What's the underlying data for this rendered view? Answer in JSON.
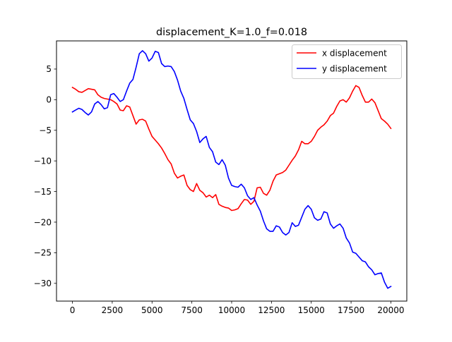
{
  "chart_data": {
    "type": "line",
    "title": "displacement_K=1.0_f=0.018",
    "xlabel": "",
    "ylabel": "",
    "xlim": [
      -1000,
      21000
    ],
    "ylim": [
      -32.9,
      9.6
    ],
    "x_ticks": [
      0,
      2500,
      5000,
      7500,
      10000,
      12500,
      15000,
      17500,
      20000
    ],
    "x_tick_labels": [
      "0",
      "2500",
      "5000",
      "7500",
      "10000",
      "12500",
      "15000",
      "17500",
      "20000"
    ],
    "y_ticks": [
      5,
      0,
      -5,
      -10,
      -15,
      -20,
      -25,
      -30
    ],
    "y_tick_labels": [
      "5",
      "0",
      "−5",
      "−10",
      "−15",
      "−20",
      "−25",
      "−30"
    ],
    "grid": false,
    "legend_position": "upper-right",
    "series": [
      {
        "name": "x displacement",
        "color": "#ff0000",
        "points": [
          [
            0,
            2.0
          ],
          [
            200,
            1.7
          ],
          [
            400,
            1.3
          ],
          [
            600,
            1.2
          ],
          [
            800,
            1.5
          ],
          [
            1000,
            1.8
          ],
          [
            1200,
            1.7
          ],
          [
            1400,
            1.6
          ],
          [
            1600,
            0.8
          ],
          [
            1800,
            0.4
          ],
          [
            2000,
            0.2
          ],
          [
            2200,
            0.1
          ],
          [
            2400,
            0.0
          ],
          [
            2600,
            -0.3
          ],
          [
            2800,
            -0.7
          ],
          [
            3000,
            -1.7
          ],
          [
            3200,
            -1.8
          ],
          [
            3400,
            -1.0
          ],
          [
            3600,
            -1.2
          ],
          [
            3800,
            -2.6
          ],
          [
            4000,
            -4.0
          ],
          [
            4200,
            -3.3
          ],
          [
            4400,
            -3.2
          ],
          [
            4600,
            -3.5
          ],
          [
            4800,
            -4.8
          ],
          [
            5000,
            -6.0
          ],
          [
            5200,
            -6.6
          ],
          [
            5400,
            -7.2
          ],
          [
            5600,
            -7.9
          ],
          [
            5800,
            -8.8
          ],
          [
            6000,
            -9.8
          ],
          [
            6200,
            -10.5
          ],
          [
            6400,
            -12.0
          ],
          [
            6600,
            -12.8
          ],
          [
            6800,
            -12.5
          ],
          [
            7000,
            -12.3
          ],
          [
            7200,
            -14.0
          ],
          [
            7400,
            -14.7
          ],
          [
            7600,
            -15.0
          ],
          [
            7800,
            -13.7
          ],
          [
            8000,
            -14.8
          ],
          [
            8200,
            -15.2
          ],
          [
            8400,
            -15.9
          ],
          [
            8600,
            -15.6
          ],
          [
            8800,
            -16.0
          ],
          [
            9000,
            -15.5
          ],
          [
            9200,
            -17.1
          ],
          [
            9400,
            -17.4
          ],
          [
            9600,
            -17.6
          ],
          [
            9800,
            -17.7
          ],
          [
            10000,
            -18.1
          ],
          [
            10200,
            -18.0
          ],
          [
            10400,
            -17.8
          ],
          [
            10600,
            -17.0
          ],
          [
            10800,
            -16.3
          ],
          [
            11000,
            -16.4
          ],
          [
            11200,
            -17.1
          ],
          [
            11400,
            -16.6
          ],
          [
            11600,
            -14.4
          ],
          [
            11800,
            -14.3
          ],
          [
            12000,
            -15.3
          ],
          [
            12200,
            -15.6
          ],
          [
            12400,
            -14.8
          ],
          [
            12600,
            -13.3
          ],
          [
            12800,
            -12.3
          ],
          [
            13000,
            -12.1
          ],
          [
            13200,
            -11.9
          ],
          [
            13400,
            -11.5
          ],
          [
            13600,
            -10.7
          ],
          [
            13800,
            -9.9
          ],
          [
            14000,
            -9.2
          ],
          [
            14200,
            -8.2
          ],
          [
            14400,
            -6.8
          ],
          [
            14600,
            -7.2
          ],
          [
            14800,
            -7.2
          ],
          [
            15000,
            -6.8
          ],
          [
            15200,
            -6.0
          ],
          [
            15400,
            -5.0
          ],
          [
            15600,
            -4.5
          ],
          [
            15800,
            -4.1
          ],
          [
            16000,
            -3.5
          ],
          [
            16200,
            -2.6
          ],
          [
            16400,
            -2.2
          ],
          [
            16600,
            -1.1
          ],
          [
            16800,
            -0.2
          ],
          [
            17000,
            0.0
          ],
          [
            17200,
            -0.4
          ],
          [
            17400,
            0.3
          ],
          [
            17600,
            1.4
          ],
          [
            17800,
            2.3
          ],
          [
            18000,
            2.0
          ],
          [
            18200,
            0.7
          ],
          [
            18400,
            -0.4
          ],
          [
            18600,
            -0.4
          ],
          [
            18800,
            0.1
          ],
          [
            19000,
            -0.5
          ],
          [
            19200,
            -1.8
          ],
          [
            19400,
            -3.1
          ],
          [
            19600,
            -3.5
          ],
          [
            19800,
            -4.0
          ],
          [
            20000,
            -4.7
          ]
        ]
      },
      {
        "name": "y displacement",
        "color": "#0000ff",
        "points": [
          [
            0,
            -2.0
          ],
          [
            200,
            -1.7
          ],
          [
            400,
            -1.4
          ],
          [
            600,
            -1.6
          ],
          [
            800,
            -2.1
          ],
          [
            1000,
            -2.5
          ],
          [
            1200,
            -2.0
          ],
          [
            1400,
            -0.7
          ],
          [
            1600,
            -0.3
          ],
          [
            1800,
            -0.8
          ],
          [
            2000,
            -1.5
          ],
          [
            2200,
            -1.3
          ],
          [
            2400,
            0.8
          ],
          [
            2600,
            1.0
          ],
          [
            2800,
            0.4
          ],
          [
            3000,
            -0.3
          ],
          [
            3200,
            0.0
          ],
          [
            3400,
            1.4
          ],
          [
            3600,
            2.7
          ],
          [
            3800,
            3.3
          ],
          [
            4000,
            5.3
          ],
          [
            4200,
            7.5
          ],
          [
            4400,
            8.0
          ],
          [
            4600,
            7.5
          ],
          [
            4800,
            6.3
          ],
          [
            5000,
            6.8
          ],
          [
            5200,
            7.9
          ],
          [
            5400,
            7.7
          ],
          [
            5600,
            5.9
          ],
          [
            5800,
            5.4
          ],
          [
            6000,
            5.5
          ],
          [
            6200,
            5.4
          ],
          [
            6400,
            4.6
          ],
          [
            6600,
            3.2
          ],
          [
            6800,
            1.4
          ],
          [
            7000,
            0.2
          ],
          [
            7200,
            -1.6
          ],
          [
            7400,
            -3.3
          ],
          [
            7600,
            -3.9
          ],
          [
            7800,
            -5.2
          ],
          [
            8000,
            -7.0
          ],
          [
            8200,
            -6.4
          ],
          [
            8400,
            -6.0
          ],
          [
            8600,
            -7.8
          ],
          [
            8800,
            -8.5
          ],
          [
            9000,
            -10.2
          ],
          [
            9200,
            -10.6
          ],
          [
            9400,
            -9.8
          ],
          [
            9600,
            -10.7
          ],
          [
            9800,
            -12.8
          ],
          [
            10000,
            -14.0
          ],
          [
            10200,
            -14.2
          ],
          [
            10400,
            -14.3
          ],
          [
            10600,
            -13.8
          ],
          [
            10800,
            -14.4
          ],
          [
            11000,
            -15.7
          ],
          [
            11200,
            -16.3
          ],
          [
            11400,
            -16.0
          ],
          [
            11600,
            -17.2
          ],
          [
            11800,
            -18.2
          ],
          [
            12000,
            -19.8
          ],
          [
            12200,
            -21.1
          ],
          [
            12400,
            -21.5
          ],
          [
            12600,
            -21.5
          ],
          [
            12800,
            -20.6
          ],
          [
            13000,
            -20.8
          ],
          [
            13200,
            -21.7
          ],
          [
            13400,
            -22.1
          ],
          [
            13600,
            -21.7
          ],
          [
            13800,
            -20.1
          ],
          [
            14000,
            -20.7
          ],
          [
            14200,
            -20.5
          ],
          [
            14400,
            -19.2
          ],
          [
            14600,
            -17.9
          ],
          [
            14800,
            -17.3
          ],
          [
            15000,
            -17.9
          ],
          [
            15200,
            -19.3
          ],
          [
            15400,
            -19.7
          ],
          [
            15600,
            -19.5
          ],
          [
            15800,
            -18.3
          ],
          [
            16000,
            -18.5
          ],
          [
            16200,
            -20.3
          ],
          [
            16400,
            -21.0
          ],
          [
            16600,
            -20.6
          ],
          [
            16800,
            -20.3
          ],
          [
            17000,
            -21.0
          ],
          [
            17200,
            -22.6
          ],
          [
            17400,
            -23.4
          ],
          [
            17600,
            -24.9
          ],
          [
            17800,
            -25.1
          ],
          [
            18000,
            -25.7
          ],
          [
            18200,
            -26.3
          ],
          [
            18400,
            -26.5
          ],
          [
            18600,
            -27.3
          ],
          [
            18800,
            -27.8
          ],
          [
            19000,
            -28.6
          ],
          [
            19200,
            -28.4
          ],
          [
            19400,
            -28.3
          ],
          [
            19600,
            -29.8
          ],
          [
            19800,
            -30.8
          ],
          [
            20000,
            -30.5
          ]
        ]
      }
    ]
  }
}
